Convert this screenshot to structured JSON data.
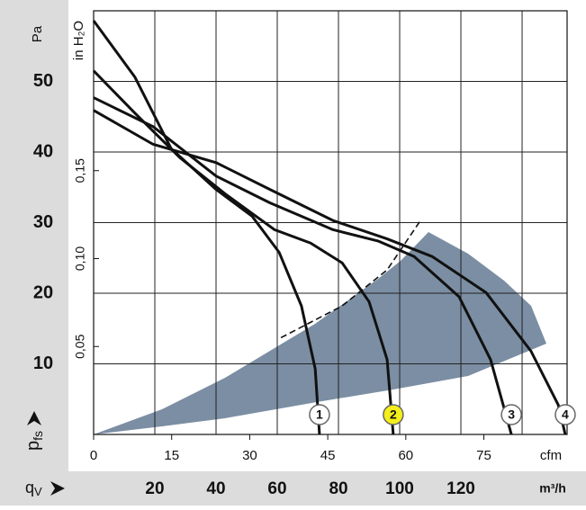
{
  "chart_data": {
    "type": "line",
    "y_label": "Pa",
    "y2_label": "in H₂O",
    "y_symbol": "p",
    "y_symbol_sub": "fs",
    "x_symbol": "q",
    "x_symbol_sub": "V",
    "x_label": "m³/h",
    "x2_label": "cfm",
    "xlim": [
      0,
      154.7
    ],
    "xticks": [
      20,
      40,
      60,
      80,
      100,
      120
    ],
    "xgrid": [
      20,
      40,
      60,
      80,
      100,
      120,
      140
    ],
    "x2lim": [
      0,
      91.0
    ],
    "x2ticks": [
      0,
      15,
      30,
      45,
      60,
      75
    ],
    "ylim": [
      0,
      60
    ],
    "yticks": [
      10,
      20,
      30,
      40,
      50
    ],
    "y2lim": [
      0,
      0.2409
    ],
    "y2ticks": [
      {
        "value": 0.05,
        "label": "0,05"
      },
      {
        "value": 0.1,
        "label": "0,10"
      },
      {
        "value": 0.15,
        "label": "0,15"
      }
    ],
    "grid": true,
    "region_color": "#7b8ea3",
    "series": [
      {
        "name": "1",
        "color": "#111111",
        "label_fill": "#ffffff",
        "x": [
          0,
          13.5,
          25.3,
          40,
          51.8,
          60.6,
          67.9,
          72.4,
          73.8
        ],
        "values": [
          58.6,
          50.6,
          40.5,
          34.7,
          30.9,
          25.8,
          18.2,
          9.3,
          0
        ]
      },
      {
        "name": "2",
        "color": "#111111",
        "label_fill": "#f4ee1a",
        "x": [
          0,
          13.5,
          28.2,
          42.9,
          59.1,
          70.9,
          81.2,
          90,
          95.9,
          97.9
        ],
        "values": [
          51.5,
          45.5,
          39.2,
          34.1,
          29.0,
          27.1,
          24.3,
          18.8,
          10.6,
          0
        ]
      },
      {
        "name": "3",
        "color": "#111111",
        "label_fill": "#ffffff",
        "x": [
          0,
          19.4,
          40,
          57.6,
          78.2,
          92.9,
          104.7,
          119.4,
          129.7,
          136.5
        ],
        "values": [
          47.7,
          43.6,
          36.6,
          32.8,
          29.0,
          27.4,
          25.2,
          19.5,
          10.6,
          0
        ]
      },
      {
        "name": "4",
        "color": "#111111",
        "label_fill": "#ffffff",
        "x": [
          0,
          19.4,
          40,
          57.6,
          78.2,
          95.9,
          110.6,
          128.2,
          142.9,
          151.8,
          154.1
        ],
        "values": [
          45.9,
          41.1,
          38.5,
          34.7,
          30.3,
          27.7,
          25.2,
          20.1,
          11.8,
          4.2,
          0
        ]
      }
    ],
    "reference_line": {
      "color": "#111111",
      "dashed": true,
      "x": [
        61.2,
        81.2,
        95.9,
        107.1
      ],
      "values": [
        13.7,
        18.2,
        23.3,
        30.5
      ]
    }
  }
}
